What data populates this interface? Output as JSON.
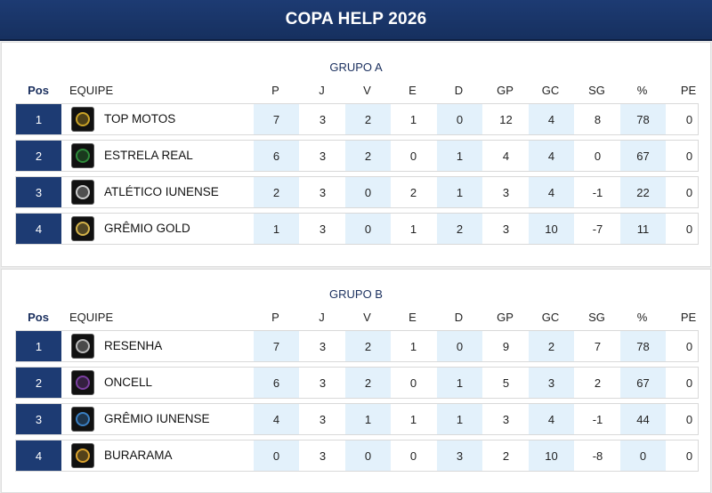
{
  "header": {
    "title": "COPA HELP 2026"
  },
  "columns": {
    "pos": "Pos",
    "team": "EQUIPE",
    "stats": [
      "P",
      "J",
      "V",
      "E",
      "D",
      "GP",
      "GC",
      "SG",
      "%",
      "PE"
    ]
  },
  "groups": [
    {
      "title": "GRUPO A",
      "rows": [
        {
          "pos": "1",
          "team": "TOP MOTOS",
          "badge_color": "#c9a227",
          "stats": [
            "7",
            "3",
            "2",
            "1",
            "0",
            "12",
            "4",
            "8",
            "78",
            "0"
          ]
        },
        {
          "pos": "2",
          "team": "ESTRELA REAL",
          "badge_color": "#2e8b3a",
          "stats": [
            "6",
            "3",
            "2",
            "0",
            "1",
            "4",
            "4",
            "0",
            "67",
            "0"
          ]
        },
        {
          "pos": "3",
          "team": "ATLÉTICO IUNENSE",
          "badge_color": "#cccccc",
          "stats": [
            "2",
            "3",
            "0",
            "2",
            "1",
            "3",
            "4",
            "-1",
            "22",
            "0"
          ]
        },
        {
          "pos": "4",
          "team": "GRÊMIO GOLD",
          "badge_color": "#d4b34a",
          "stats": [
            "1",
            "3",
            "0",
            "1",
            "2",
            "3",
            "10",
            "-7",
            "11",
            "0"
          ]
        }
      ]
    },
    {
      "title": "GRUPO B",
      "rows": [
        {
          "pos": "1",
          "team": "RESENHA",
          "badge_color": "#bbbbbb",
          "stats": [
            "7",
            "3",
            "2",
            "1",
            "0",
            "9",
            "2",
            "7",
            "78",
            "0"
          ]
        },
        {
          "pos": "2",
          "team": "ONCELL",
          "badge_color": "#7b3fa0",
          "stats": [
            "6",
            "3",
            "2",
            "0",
            "1",
            "5",
            "3",
            "2",
            "67",
            "0"
          ]
        },
        {
          "pos": "3",
          "team": "GRÊMIO IUNENSE",
          "badge_color": "#3a7fc2",
          "stats": [
            "4",
            "3",
            "1",
            "1",
            "1",
            "3",
            "4",
            "-1",
            "44",
            "0"
          ]
        },
        {
          "pos": "4",
          "team": "BURARAMA",
          "badge_color": "#d9a22e",
          "stats": [
            "0",
            "3",
            "0",
            "0",
            "3",
            "2",
            "10",
            "-8",
            "0",
            "0"
          ]
        }
      ]
    }
  ]
}
